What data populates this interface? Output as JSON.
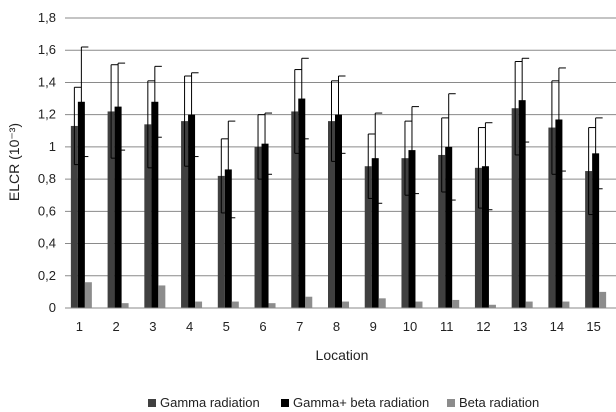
{
  "chart_data": {
    "type": "bar",
    "xlabel": "Location",
    "ylabel": "ELCR (10⁻³)",
    "ylim": [
      0,
      1.8
    ],
    "yticks": [
      "0",
      "0,2",
      "0,4",
      "0,6",
      "0,8",
      "1",
      "1,2",
      "1,4",
      "1,6",
      "1,8"
    ],
    "categories": [
      "1",
      "2",
      "3",
      "4",
      "5",
      "6",
      "7",
      "8",
      "9",
      "10",
      "11",
      "12",
      "13",
      "14",
      "15"
    ],
    "grid": "horizontal",
    "legend_position": "bottom",
    "series": [
      {
        "name": "Gamma radiation",
        "color": "#404040",
        "values": [
          1.13,
          1.22,
          1.14,
          1.16,
          0.82,
          1.0,
          1.22,
          1.16,
          0.88,
          0.93,
          0.95,
          0.87,
          1.24,
          1.12,
          0.85
        ],
        "errors": [
          0.24,
          0.29,
          0.27,
          0.28,
          0.23,
          0.2,
          0.26,
          0.25,
          0.2,
          0.23,
          0.23,
          0.25,
          0.29,
          0.29,
          0.27
        ]
      },
      {
        "name": "Gamma+ beta radiation",
        "color": "#000000",
        "values": [
          1.28,
          1.25,
          1.28,
          1.2,
          0.86,
          1.02,
          1.3,
          1.2,
          0.93,
          0.98,
          1.0,
          0.88,
          1.29,
          1.17,
          0.96
        ],
        "errors": [
          0.34,
          0.27,
          0.22,
          0.26,
          0.3,
          0.19,
          0.25,
          0.24,
          0.28,
          0.27,
          0.33,
          0.27,
          0.26,
          0.32,
          0.22
        ]
      },
      {
        "name": "Beta radiation",
        "color": "#8c8c8c",
        "values": [
          0.16,
          0.03,
          0.14,
          0.04,
          0.04,
          0.03,
          0.07,
          0.04,
          0.06,
          0.04,
          0.05,
          0.02,
          0.04,
          0.04,
          0.1
        ],
        "errors": [
          0,
          0,
          0,
          0,
          0,
          0,
          0,
          0,
          0,
          0,
          0,
          0,
          0,
          0,
          0
        ]
      }
    ]
  }
}
